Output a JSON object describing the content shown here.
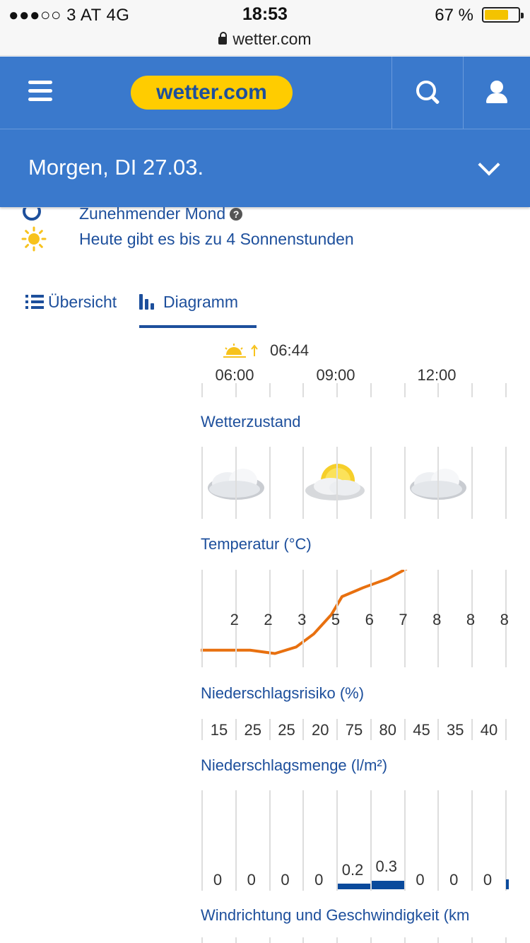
{
  "status_bar": {
    "carrier": "●●●○○ 3 AT   4G",
    "time": "18:53",
    "battery": "67 %",
    "battery_level": 0.67,
    "url": "wetter.com"
  },
  "navbar": {
    "logo": "wetter.com"
  },
  "date_bar": {
    "label": "Morgen, DI 27.03."
  },
  "info": {
    "moon": "Zunehmender Mond",
    "sun": "Heute gibt es bis zu 4 Sonnenstunden"
  },
  "tabs": [
    {
      "label": "Übersicht",
      "active": false
    },
    {
      "label": "Diagramm",
      "active": true
    }
  ],
  "sunrise": "06:44",
  "hours": [
    "06:00",
    "09:00",
    "12:00"
  ],
  "sections": {
    "weather": "Wetterzustand",
    "temperature": "Temperatur (°C)",
    "precip_risk": "Niederschlagsrisiko (%)",
    "precip_amount": "Niederschlagsmenge (l/m²)",
    "wind": "Windrichtung und Geschwindigkeit (km"
  },
  "weather_icons": [
    "cloudy-icon",
    "partly-sunny-icon",
    "cloudy-icon"
  ],
  "temperatures": [
    "2",
    "2",
    "3",
    "5",
    "6",
    "7",
    "8",
    "8",
    "8"
  ],
  "precip_risk": [
    "15",
    "25",
    "25",
    "20",
    "75",
    "80",
    "45",
    "35",
    "40"
  ],
  "precip_amount": [
    "0",
    "0",
    "0",
    "0",
    "0.2",
    "0.3",
    "0",
    "0",
    "0"
  ],
  "colors": {
    "brand_blue": "#3a79cc",
    "text_blue": "#1d4f9c",
    "logo_yellow": "#ffcc00",
    "temp_line": "#e8700f",
    "bar": "#0a4a9c"
  }
}
